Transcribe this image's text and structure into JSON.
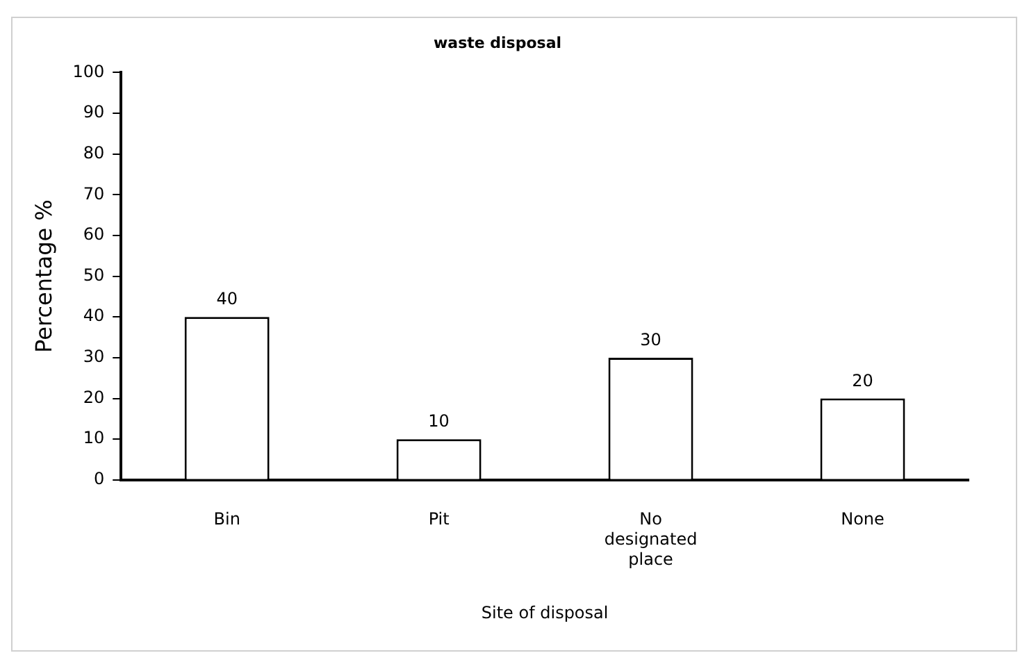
{
  "chart_data": {
    "type": "bar",
    "title": "waste disposal",
    "xlabel": "Site of disposal",
    "ylabel": "Percentage %",
    "categories": [
      "Bin",
      "Pit",
      "No designated place",
      "None"
    ],
    "values": [
      40,
      10,
      30,
      20
    ],
    "color": "#ffffff",
    "ylim": [
      0,
      100
    ],
    "yticks": [
      0,
      10,
      20,
      30,
      40,
      50,
      60,
      70,
      80,
      90,
      100
    ],
    "grid": false,
    "legend": false,
    "data_labels": true
  }
}
